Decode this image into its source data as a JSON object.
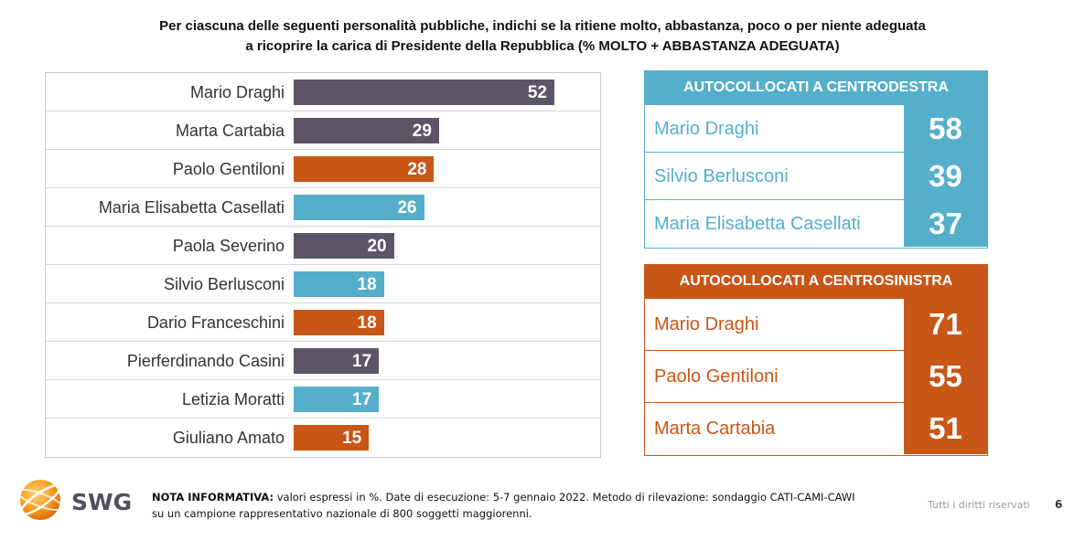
{
  "title": {
    "line1": "Per ciascuna delle seguenti personalità pubbliche, indichi se la ritiene molto, abbastanza, poco o per niente adeguata",
    "line2": "a ricoprire la carica di Presidente della Repubblica (% MOLTO + ABBASTANZA ADEGUATA)"
  },
  "colors": {
    "grey": "#5e5468",
    "orange": "#c85617",
    "blue": "#55afcb"
  },
  "chart_data": [
    {
      "type": "bar",
      "orientation": "horizontal",
      "categories": [
        "Mario Draghi",
        "Marta Cartabia",
        "Paolo Gentiloni",
        "Maria Elisabetta Casellati",
        "Paola Severino",
        "Silvio Berlusconi",
        "Dario Franceschini",
        "Pierferdinando Casini",
        "Letizia Moratti",
        "Giuliano Amato"
      ],
      "values": [
        52,
        29,
        28,
        26,
        20,
        18,
        18,
        17,
        17,
        15
      ],
      "bar_colors": [
        "#5e5468",
        "#5e5468",
        "#c85617",
        "#55afcb",
        "#5e5468",
        "#55afcb",
        "#c85617",
        "#5e5468",
        "#55afcb",
        "#c85617"
      ],
      "xlim": [
        0,
        52
      ],
      "grid": false
    },
    {
      "type": "table",
      "title": "AUTOCOLLOCATI A CENTRODESTRA",
      "color": "#55afcb",
      "rows": [
        {
          "name": "Mario Draghi",
          "value": 58
        },
        {
          "name": "Silvio Berlusconi",
          "value": 39
        },
        {
          "name": "Maria Elisabetta Casellati",
          "value": 37
        }
      ]
    },
    {
      "type": "table",
      "title": "AUTOCOLLOCATI A CENTROSINISTRA",
      "color": "#c85617",
      "rows": [
        {
          "name": "Mario Draghi",
          "value": 71
        },
        {
          "name": "Paolo Gentiloni",
          "value": 55
        },
        {
          "name": "Marta Cartabia",
          "value": 51
        }
      ]
    }
  ],
  "footer": {
    "logo_text": "SWG",
    "note_bold": "NOTA INFORMATIVA:",
    "note_text": " valori espressi in %. Date di esecuzione: 5-7 gennaio 2022. Metodo di rilevazione: sondaggio CATI-CAMI-CAWI su un campione rappresentativo nazionale di 800 soggetti maggiorenni.",
    "rights": "Tutti i diritti riservati",
    "page_number": "6"
  }
}
